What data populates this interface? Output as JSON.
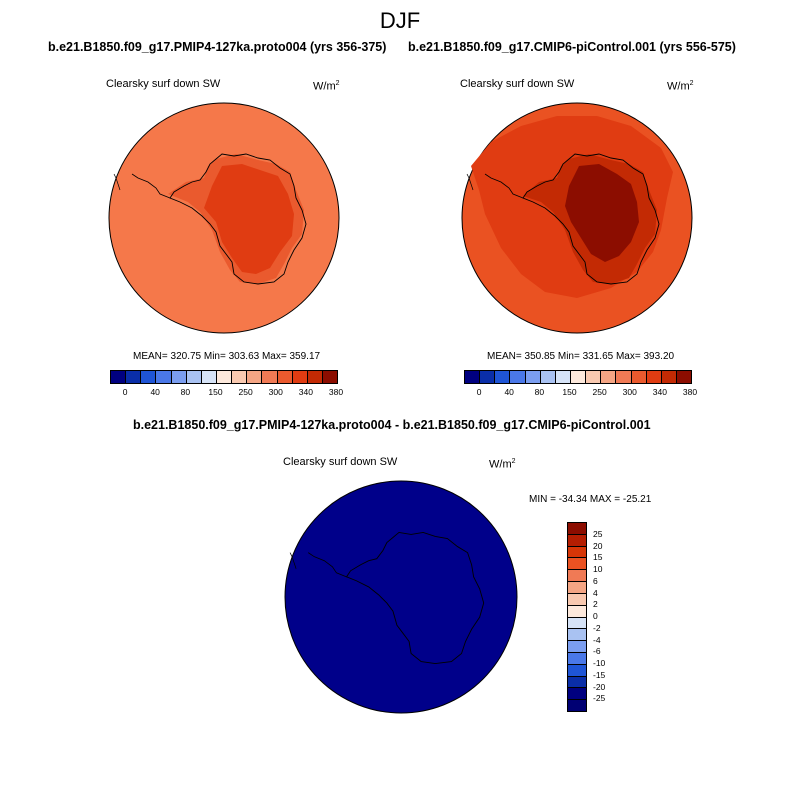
{
  "season": "DJF",
  "panels": {
    "left": {
      "case_title": "b.e21.B1850.f09_g17.PMIP4-127ka.proto004 (yrs 356-375)",
      "variable": "Clearsky surf down SW",
      "units_base": "W/m",
      "units_exp": "2",
      "stats": "MEAN= 320.75  Min= 303.63  Max= 359.17"
    },
    "right": {
      "case_title": "b.e21.B1850.f09_g17.CMIP6-piControl.001 (yrs 556-575)",
      "variable": "Clearsky surf down SW",
      "units_base": "W/m",
      "units_exp": "2",
      "stats": "MEAN= 350.85  Min= 331.65  Max= 393.20"
    },
    "diff": {
      "case_title": "b.e21.B1850.f09_g17.PMIP4-127ka.proto004 - b.e21.B1850.f09_g17.CMIP6-piControl.001",
      "variable": "Clearsky surf down SW",
      "units_base": "W/m",
      "units_exp": "2",
      "stats": "MIN = -34.34 MAX = -25.21"
    }
  },
  "colorbar_abs": {
    "labels": [
      "0",
      "40",
      "80",
      "150",
      "250",
      "300",
      "340",
      "380"
    ],
    "colors": [
      "#000080",
      "#0a2ea8",
      "#1f55d6",
      "#4a78e8",
      "#7b9ef0",
      "#a9c2f2",
      "#d6e3f7",
      "#fde9dc",
      "#f9c9b0",
      "#f4a584",
      "#f07a55",
      "#ea5a2e",
      "#e03c12",
      "#c32a04",
      "#8c0d00"
    ]
  },
  "colorbar_diff": {
    "labels": [
      "25",
      "20",
      "15",
      "10",
      "6",
      "4",
      "2",
      "0",
      "-2",
      "-4",
      "-6",
      "-10",
      "-15",
      "-20",
      "-25"
    ],
    "colors": [
      "#8c0d00",
      "#b51e02",
      "#d73607",
      "#ea5222",
      "#f07a55",
      "#f4a584",
      "#f9c9b0",
      "#fde9dc",
      "#d6e3f7",
      "#a9c2f2",
      "#7b9ef0",
      "#4a78e8",
      "#1f55d6",
      "#0a2ea8",
      "#000080",
      "#000073"
    ]
  },
  "field_colors": {
    "left_ocean": "#f5784a",
    "left_coast": "#ea5a2e",
    "left_plateau": "#e03c12",
    "right_ocean": "#ea5222",
    "right_coast": "#e03c12",
    "right_inner": "#c32a04",
    "right_plateau": "#8c0d00",
    "diff_fill": "#00008a"
  }
}
